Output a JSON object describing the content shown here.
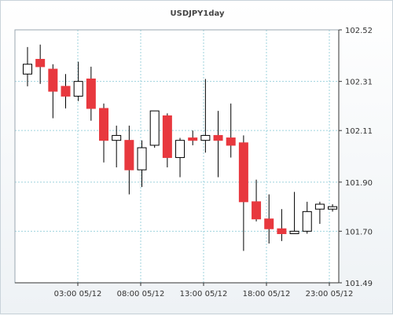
{
  "chart_data": {
    "type": "candlestick",
    "title": "USDJPY1day",
    "ylim": [
      101.49,
      102.52
    ],
    "y_ticks": [
      "102.52",
      "102.31",
      "102.11",
      "101.90",
      "101.70",
      "101.49"
    ],
    "x_ticks": [
      "03:00 05/12",
      "08:00 05/12",
      "13:00 05/12",
      "18:00 05/12",
      "23:00 05/12"
    ],
    "colors": {
      "up": "#ffffff",
      "down": "#e8383e",
      "grid": "#9fd3de",
      "axis": "#333333"
    },
    "candles": [
      {
        "open": 102.34,
        "high": 102.45,
        "low": 102.29,
        "close": 102.38
      },
      {
        "open": 102.4,
        "high": 102.46,
        "low": 102.3,
        "close": 102.37
      },
      {
        "open": 102.36,
        "high": 102.38,
        "low": 102.16,
        "close": 102.27
      },
      {
        "open": 102.29,
        "high": 102.34,
        "low": 102.2,
        "close": 102.25
      },
      {
        "open": 102.25,
        "high": 102.39,
        "low": 102.23,
        "close": 102.31
      },
      {
        "open": 102.32,
        "high": 102.37,
        "low": 102.15,
        "close": 102.2
      },
      {
        "open": 102.2,
        "high": 102.22,
        "low": 101.98,
        "close": 102.07
      },
      {
        "open": 102.07,
        "high": 102.13,
        "low": 101.96,
        "close": 102.09
      },
      {
        "open": 102.07,
        "high": 102.13,
        "low": 101.85,
        "close": 101.95
      },
      {
        "open": 101.95,
        "high": 102.07,
        "low": 101.88,
        "close": 102.04
      },
      {
        "open": 102.05,
        "high": 102.19,
        "low": 102.04,
        "close": 102.19
      },
      {
        "open": 102.17,
        "high": 102.18,
        "low": 101.96,
        "close": 102.0
      },
      {
        "open": 102.0,
        "high": 102.08,
        "low": 101.92,
        "close": 102.07
      },
      {
        "open": 102.08,
        "high": 102.11,
        "low": 102.05,
        "close": 102.07
      },
      {
        "open": 102.07,
        "high": 102.32,
        "low": 102.02,
        "close": 102.09
      },
      {
        "open": 102.09,
        "high": 102.19,
        "low": 101.92,
        "close": 102.07
      },
      {
        "open": 102.08,
        "high": 102.22,
        "low": 102.0,
        "close": 102.05
      },
      {
        "open": 102.06,
        "high": 102.09,
        "low": 101.62,
        "close": 101.82
      },
      {
        "open": 101.82,
        "high": 101.91,
        "low": 101.74,
        "close": 101.75
      },
      {
        "open": 101.75,
        "high": 101.85,
        "low": 101.65,
        "close": 101.71
      },
      {
        "open": 101.71,
        "high": 101.79,
        "low": 101.66,
        "close": 101.69
      },
      {
        "open": 101.69,
        "high": 101.86,
        "low": 101.69,
        "close": 101.7
      },
      {
        "open": 101.7,
        "high": 101.82,
        "low": 101.69,
        "close": 101.78
      },
      {
        "open": 101.79,
        "high": 101.82,
        "low": 101.73,
        "close": 101.81
      },
      {
        "open": 101.79,
        "high": 101.81,
        "low": 101.78,
        "close": 101.8
      }
    ]
  }
}
